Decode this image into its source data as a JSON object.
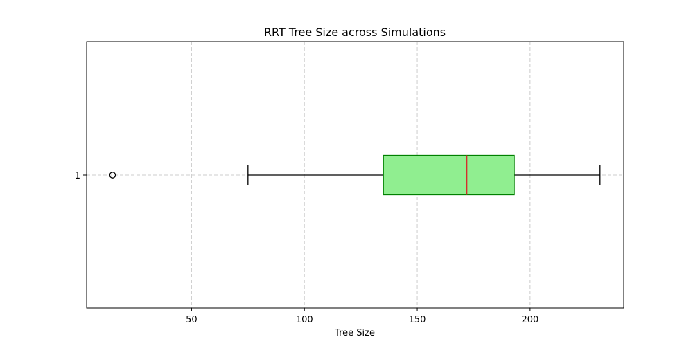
{
  "chart_data": {
    "type": "boxplot",
    "orientation": "horizontal",
    "title": "RRT Tree Size across Simulations",
    "xlabel": "Tree Size",
    "ylabel": "",
    "xlim": [
      3.5,
      241.5
    ],
    "xticks": [
      50,
      100,
      150,
      200
    ],
    "yticks": [
      "1"
    ],
    "grid": true,
    "series": [
      {
        "name": "1",
        "whisker_low": 75,
        "q1": 135,
        "median": 172,
        "q3": 193,
        "whisker_high": 231,
        "outliers": [
          15
        ]
      }
    ],
    "colors": {
      "box_fill": "#90ee90",
      "box_edge": "#008000",
      "median": "#d62728",
      "whisker": "#000000",
      "grid": "#cccccc"
    }
  }
}
